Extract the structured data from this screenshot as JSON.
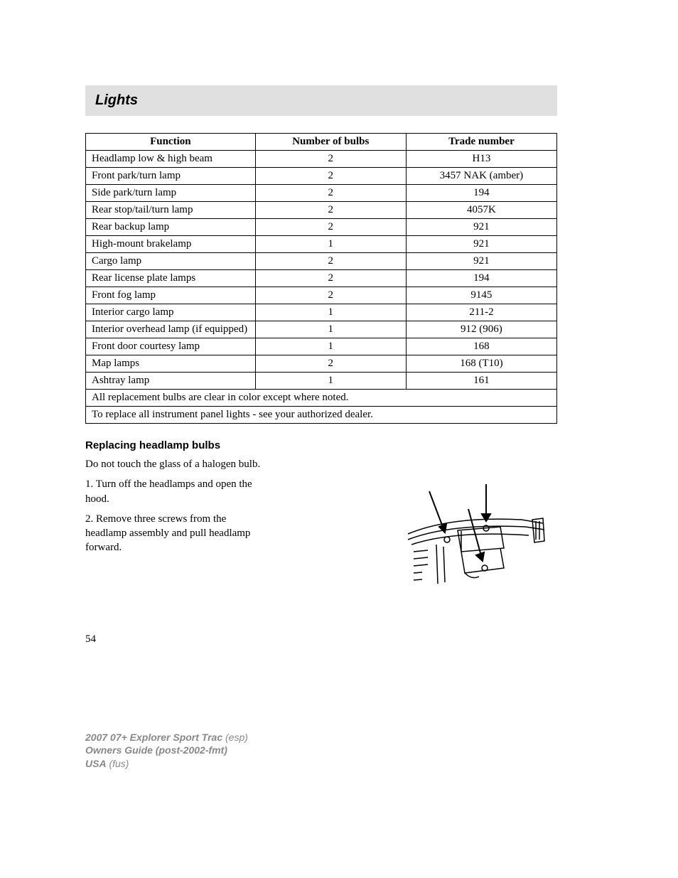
{
  "section": {
    "title": "Lights"
  },
  "table": {
    "type": "table",
    "columns": [
      "Function",
      "Number of bulbs",
      "Trade number"
    ],
    "rows": [
      [
        "Headlamp low & high beam",
        "2",
        "H13"
      ],
      [
        "Front park/turn lamp",
        "2",
        "3457 NAK (amber)"
      ],
      [
        "Side park/turn lamp",
        "2",
        "194"
      ],
      [
        "Rear stop/tail/turn lamp",
        "2",
        "4057K"
      ],
      [
        "Rear backup lamp",
        "2",
        "921"
      ],
      [
        "High-mount brakelamp",
        "1",
        "921"
      ],
      [
        "Cargo lamp",
        "2",
        "921"
      ],
      [
        "Rear license plate lamps",
        "2",
        "194"
      ],
      [
        "Front fog lamp",
        "2",
        "9145"
      ],
      [
        "Interior cargo lamp",
        "1",
        "211-2"
      ],
      [
        "Interior overhead lamp (if equipped)",
        "1",
        "912 (906)"
      ],
      [
        "Front door courtesy lamp",
        "1",
        "168"
      ],
      [
        "Map lamps",
        "2",
        "168 (T10)"
      ],
      [
        "Ashtray lamp",
        "1",
        "161"
      ]
    ],
    "footer_rows": [
      "All replacement bulbs are clear in color except where noted.",
      "To replace all instrument panel lights - see your authorized dealer."
    ],
    "column_widths": [
      "36%",
      "32%",
      "32%"
    ],
    "border_color": "#000000",
    "header_bg": "#ffffff",
    "font_size": 15
  },
  "subsection": {
    "title": "Replacing headlamp bulbs",
    "intro": "Do not touch the glass of a halogen bulb.",
    "steps": [
      "1. Turn off the headlamps and open the hood.",
      "2. Remove three screws from the headlamp assembly and pull headlamp forward."
    ]
  },
  "diagram": {
    "type": "line-drawing",
    "description": "headlamp-assembly-screws",
    "stroke_color": "#000000",
    "background_color": "#ffffff",
    "arrows_count": 3
  },
  "page_number": "54",
  "footer": {
    "line1_bold": "2007 07+ Explorer Sport Trac",
    "line1_rest": " (esp)",
    "line2_bold": "Owners Guide (post-2002-fmt)",
    "line3_bold": "USA",
    "line3_rest": " (fus)"
  },
  "colors": {
    "header_bg": "#e0e0e0",
    "text": "#000000",
    "footer_text": "#888888",
    "background": "#ffffff"
  },
  "typography": {
    "body_font": "Georgia, serif",
    "heading_font": "Arial, sans-serif",
    "body_size": 15,
    "title_size": 20
  }
}
